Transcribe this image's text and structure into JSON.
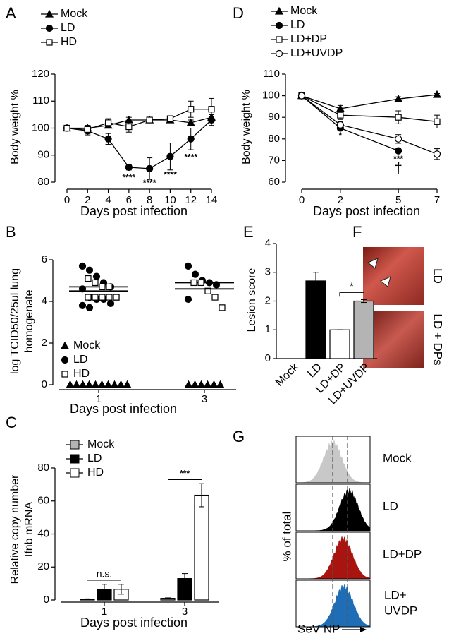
{
  "chart_data": [
    {
      "type": "line",
      "panel": "A",
      "ylabel": "Body weight %",
      "xlabel": "Days post infection",
      "x": [
        0,
        2,
        4,
        6,
        8,
        10,
        12,
        14
      ],
      "xlim": [
        0,
        14
      ],
      "xticks": [
        0,
        2,
        4,
        6,
        8,
        10,
        12,
        14
      ],
      "ylim": [
        80,
        120
      ],
      "yticks": [
        80,
        90,
        100,
        110,
        120
      ],
      "series": [
        {
          "name": "Mock",
          "marker": "triangle",
          "color": "#000000",
          "values": [
            100,
            100,
            101,
            103,
            103,
            103,
            102,
            104
          ],
          "errors": [
            0,
            1,
            1,
            1,
            1,
            1,
            1,
            1
          ]
        },
        {
          "name": "LD",
          "marker": "circle",
          "color": "#000000",
          "values": [
            100,
            99,
            96,
            85.5,
            85,
            89.5,
            96,
            103
          ],
          "errors": [
            0,
            1.5,
            2,
            1,
            4,
            5,
            4,
            2
          ]
        },
        {
          "name": "HD",
          "marker": "square",
          "color": "#000000",
          "values": [
            100,
            99.5,
            102,
            100.5,
            103,
            103.5,
            107,
            107
          ],
          "errors": [
            0,
            1.5,
            1.5,
            2,
            1,
            1,
            3,
            4
          ]
        }
      ],
      "annotations": [
        "****",
        "****",
        "****",
        "****"
      ]
    },
    {
      "type": "line",
      "panel": "D",
      "ylabel": "Body weight %",
      "xlabel": "Days post infection",
      "x": [
        0,
        2,
        5,
        7
      ],
      "xlim": [
        0,
        7
      ],
      "xticks": [
        0,
        2,
        5,
        7
      ],
      "ylim": [
        60,
        110
      ],
      "yticks": [
        60,
        70,
        80,
        90,
        100,
        110
      ],
      "series": [
        {
          "name": "Mock",
          "marker": "triangle",
          "color": "#000000",
          "values": [
            100,
            94,
            98.5,
            100.5
          ],
          "errors": [
            0,
            1.5,
            1,
            0.5
          ]
        },
        {
          "name": "LD",
          "marker": "circle",
          "color": "#000000",
          "values": [
            100,
            85,
            74.5,
            null
          ],
          "errors": [
            0,
            1,
            0,
            null
          ]
        },
        {
          "name": "LD+DP",
          "marker": "square",
          "color": "#000000",
          "values": [
            100,
            91,
            90,
            88
          ],
          "errors": [
            0,
            2,
            3,
            3
          ]
        },
        {
          "name": "LD+UVDP",
          "marker": "open-circle",
          "color": "#000000",
          "values": [
            100,
            86.5,
            80,
            73
          ],
          "errors": [
            0,
            1.5,
            2,
            2.5
          ]
        }
      ],
      "annotations": [
        "*",
        "***",
        "†"
      ]
    },
    {
      "type": "dot",
      "panel": "B",
      "ylabel": [
        "log TCID50/25ul lung",
        "homogenate"
      ],
      "xlabel": "Days post infection",
      "categories": [
        "1",
        "3"
      ],
      "ylim": [
        0,
        6
      ],
      "yticks": [
        0,
        2,
        4,
        6
      ],
      "series": [
        {
          "name": "Mock",
          "marker": "triangle",
          "values": [
            [
              0,
              0,
              0,
              0,
              0,
              0,
              0,
              0,
              0,
              0
            ],
            [
              0,
              0,
              0,
              0,
              0,
              0
            ]
          ]
        },
        {
          "name": "LD",
          "marker": "circle",
          "values": [
            [
              5.7,
              5.5,
              5.2,
              4.9,
              4.7,
              4.6,
              4.2,
              4.1,
              4.1,
              3.9,
              3.8,
              3.7
            ],
            [
              5.7,
              5.3,
              5.0,
              4.9,
              4.8,
              4.1
            ]
          ],
          "means": [
            4.7,
            4.9
          ]
        },
        {
          "name": "HD",
          "marker": "square",
          "values": [
            [
              5.1,
              4.9,
              4.7,
              4.7,
              4.2,
              4.2,
              4.2,
              4.2,
              4.2,
              4.2
            ],
            [
              4.9,
              4.9,
              4.5,
              4.2,
              3.7
            ]
          ],
          "means": [
            4.5,
            4.6
          ]
        }
      ]
    },
    {
      "type": "bar",
      "panel": "E",
      "ylabel": "Lesion score",
      "categories": [
        "Mock",
        "LD",
        "LD+DP",
        "LD+UVDP"
      ],
      "values": [
        0,
        2.7,
        1,
        2
      ],
      "errors": [
        0,
        0.3,
        0,
        0.05
      ],
      "colors": [
        "#ffffff",
        "#000000",
        "#ffffff",
        "#b4b4b4"
      ],
      "ylim": [
        0,
        4
      ],
      "yticks": [
        0,
        1,
        2,
        3,
        4
      ],
      "annotations": [
        "*"
      ]
    },
    {
      "type": "grouped-bar",
      "panel": "C",
      "ylabel": [
        "Relative copy number",
        "Ifnb mRNA"
      ],
      "xlabel": "Days post infection",
      "categories": [
        "1",
        "3"
      ],
      "ylim": [
        0,
        80
      ],
      "yticks": [
        0,
        20,
        40,
        60,
        80
      ],
      "series": [
        {
          "name": "Mock",
          "color": "#b4b4b4",
          "values": [
            0.5,
            1
          ],
          "errors": [
            0.2,
            0.3
          ]
        },
        {
          "name": "LD",
          "color": "#000000",
          "values": [
            6.5,
            13
          ],
          "errors": [
            3,
            3
          ]
        },
        {
          "name": "HD",
          "color": "#ffffff",
          "values": [
            6.5,
            63.5
          ],
          "errors": [
            3,
            7
          ]
        }
      ],
      "annotations": [
        "n.s.",
        "***"
      ]
    }
  ],
  "image_panel": {
    "panel": "F",
    "labels": [
      "LD",
      "LD + DPs"
    ]
  },
  "histogram_panel": {
    "panel": "G",
    "labels": [
      "Mock",
      "LD",
      "LD+DP",
      [
        "LD+",
        "UVDP"
      ]
    ],
    "colors": [
      "#c8c8c8",
      "#000000",
      "#a8140f",
      "#1f6db4"
    ],
    "ylabel": "% of total",
    "xlabel": "SeV NP"
  }
}
